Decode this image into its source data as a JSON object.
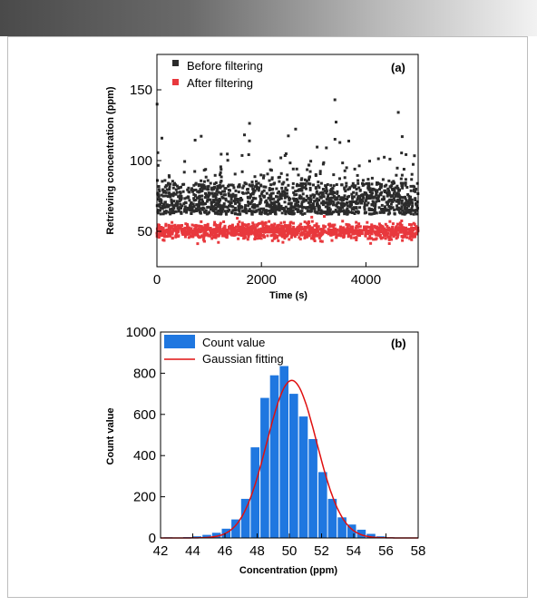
{
  "chart_data": [
    {
      "type": "scatter",
      "panel_label": "(a)",
      "xlabel": "Time (s)",
      "ylabel": "Retrieving concentration (ppm)",
      "xlim": [
        0,
        5000
      ],
      "ylim": [
        25,
        175
      ],
      "xticks": [
        0,
        2000,
        4000
      ],
      "yticks": [
        50,
        100,
        150
      ],
      "legend_position": "top-left",
      "series": [
        {
          "name": "Before filtering",
          "color": "#2b2b2b",
          "center": 75,
          "spread": 11,
          "min": 62,
          "max": 160
        },
        {
          "name": "After filtering",
          "color": "#e8383d",
          "center": 50,
          "spread": 2.8,
          "min": 38,
          "max": 63
        }
      ]
    },
    {
      "type": "bar",
      "panel_label": "(b)",
      "xlabel": "Concentration (ppm)",
      "ylabel": "Count value",
      "xlim": [
        42,
        58
      ],
      "ylim": [
        0,
        1000
      ],
      "xticks": [
        42,
        44,
        46,
        48,
        50,
        52,
        54,
        56,
        58
      ],
      "yticks": [
        0,
        200,
        400,
        600,
        800,
        1000
      ],
      "legend_position": "top-left",
      "bin_width": 0.6,
      "series": [
        {
          "name": "Count value",
          "color": "#1f77e0",
          "bin_centers": [
            42.5,
            43.1,
            43.7,
            44.3,
            44.9,
            45.5,
            46.1,
            46.7,
            47.3,
            47.9,
            48.5,
            49.1,
            49.7,
            50.3,
            50.9,
            51.5,
            52.1,
            52.7,
            53.3,
            53.9,
            54.5,
            55.1,
            55.7,
            56.3
          ],
          "values": [
            3,
            2,
            4,
            8,
            15,
            25,
            45,
            90,
            190,
            440,
            680,
            790,
            835,
            700,
            590,
            480,
            320,
            190,
            100,
            65,
            40,
            20,
            8,
            3
          ]
        },
        {
          "name": "Gaussian fitting",
          "color": "#e01010",
          "mean": 50.15,
          "sigma": 1.55,
          "peak": 765
        }
      ]
    }
  ]
}
